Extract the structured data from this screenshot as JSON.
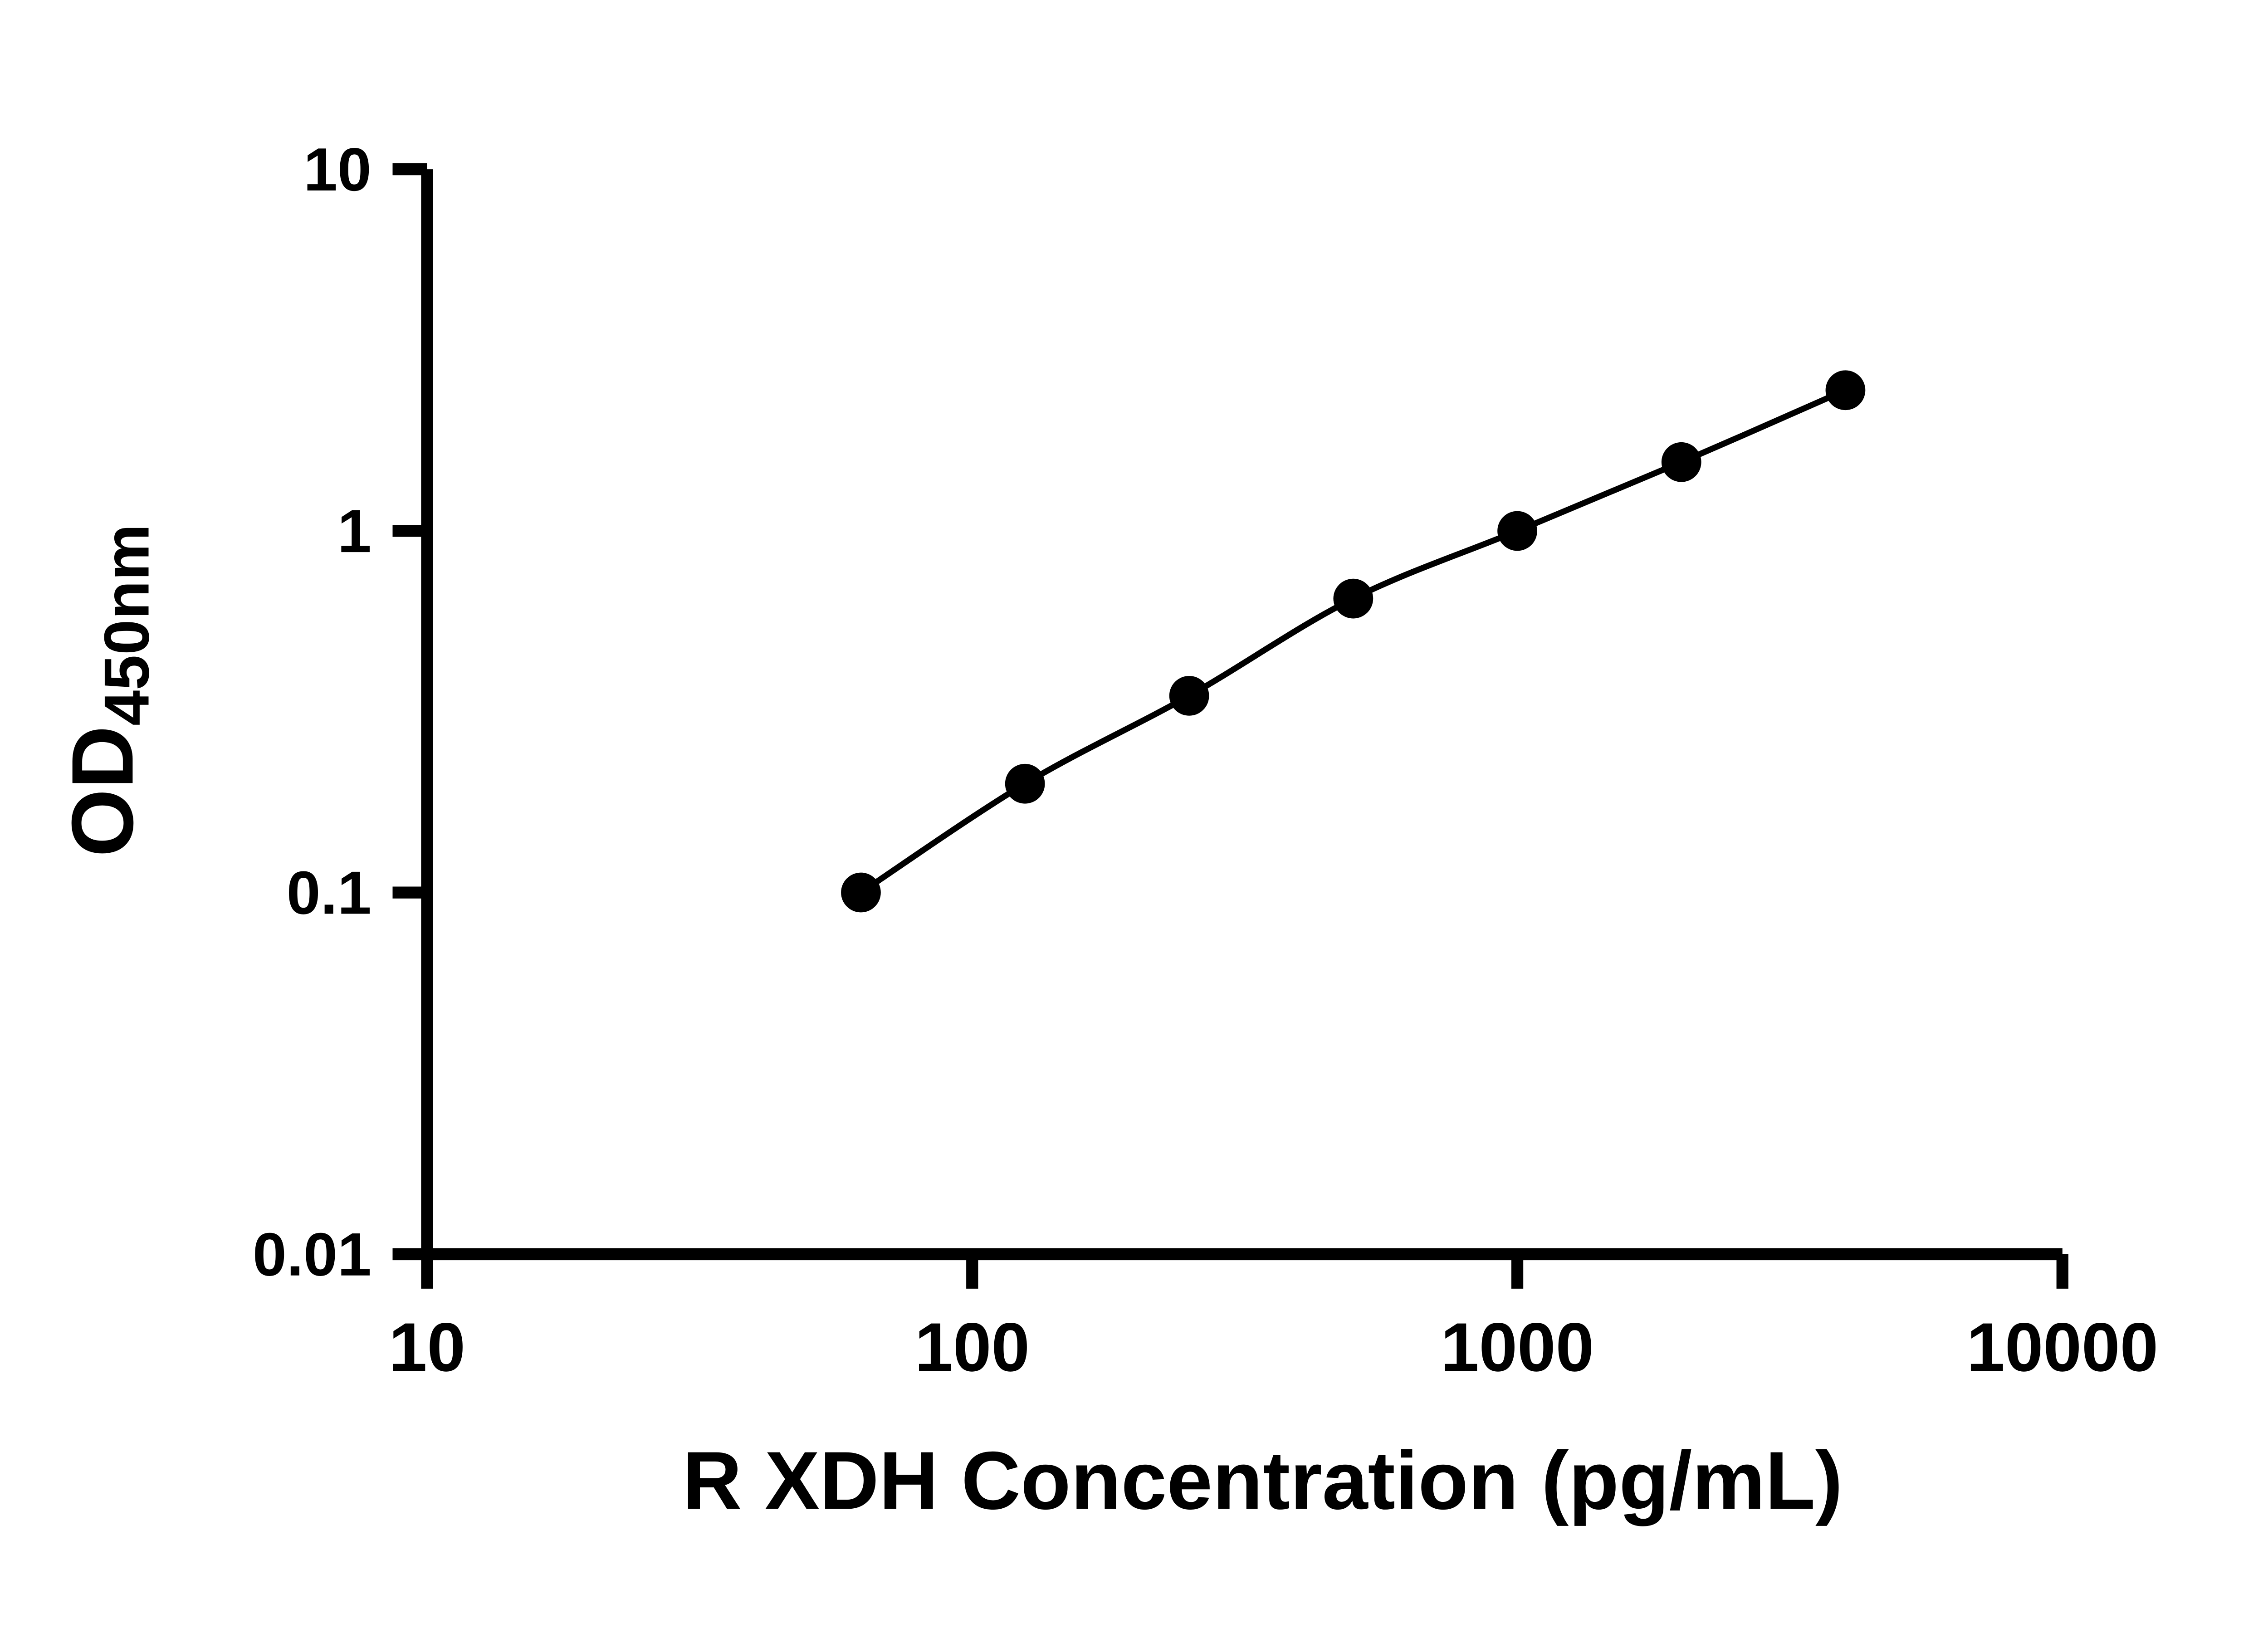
{
  "page": {
    "background": "#ffffff",
    "foreground": "#000000"
  },
  "chart_data": {
    "type": "scatter",
    "title": "",
    "xlabel": "R XDH Concentration (pg/mL)",
    "ylabel_main": "OD",
    "ylabel_sub": "450nm",
    "x_scale": "log",
    "y_scale": "log",
    "xlim": [
      10,
      10000
    ],
    "ylim": [
      0.01,
      10
    ],
    "x": [
      62.5,
      125,
      250,
      500,
      1000,
      2000,
      4000
    ],
    "y": [
      0.1,
      0.2,
      0.35,
      0.65,
      1.0,
      1.55,
      2.45
    ],
    "x_ticks": [
      10,
      100,
      1000,
      10000
    ],
    "x_tick_labels": [
      "10",
      "100",
      "1000",
      "10000"
    ],
    "y_ticks": [
      0.01,
      0.1,
      1,
      10
    ],
    "y_tick_labels": [
      "0.01",
      "0.1",
      "1",
      "10"
    ],
    "grid": false,
    "legend": "none",
    "marker": {
      "shape": "circle",
      "color": "#000000",
      "radius_px": 15
    },
    "line_color": "#000000",
    "axis_color": "#000000"
  }
}
